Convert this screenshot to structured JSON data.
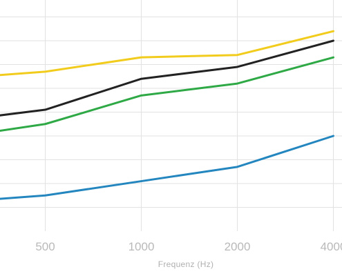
{
  "chart_data": {
    "type": "line",
    "xlabel": "Frequenz (Hz)",
    "ylabel": "",
    "x_tick_labels": [
      "500",
      "1000",
      "2000",
      "4000"
    ],
    "x_scale": "log2",
    "x": [
      250,
      500,
      1000,
      2000,
      4000
    ],
    "ylim": [
      0,
      1
    ],
    "y_gridlines": [
      0.1,
      0.2,
      0.3,
      0.4,
      0.5,
      0.6,
      0.7,
      0.8,
      0.9,
      1.0
    ],
    "grid": true,
    "legend": "none",
    "series": [
      {
        "color": "#F2CC1D",
        "values": [
          0.64,
          0.67,
          0.73,
          0.74,
          0.84
        ]
      },
      {
        "color": "#222222",
        "values": [
          0.46,
          0.51,
          0.64,
          0.69,
          0.8
        ]
      },
      {
        "color": "#2EA946",
        "values": [
          0.39,
          0.45,
          0.57,
          0.62,
          0.73
        ]
      },
      {
        "color": "#2486BE",
        "values": [
          0.12,
          0.15,
          0.21,
          0.27,
          0.4
        ]
      }
    ]
  }
}
